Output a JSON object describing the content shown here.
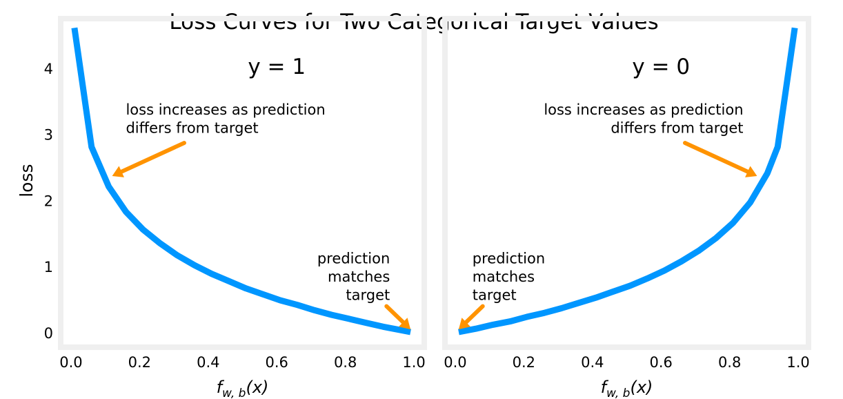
{
  "colors": {
    "curve": "#0096FF",
    "arrow": "#FF9300",
    "frame": "#EFEFEF",
    "background": "#FFFFFF",
    "text": "#000000"
  },
  "figure_title": "Loss Curves for Two Categorical Target Values",
  "chart_data": [
    {
      "type": "line",
      "subtitle": "y = 1",
      "xlabel": "f_{w,b}(x)",
      "xlabel_parts": {
        "base": "f",
        "sub": "w, b",
        "arg": "(x)"
      },
      "ylabel": "loss",
      "xlim": [
        -0.03,
        1.03
      ],
      "ylim": [
        -0.22,
        4.75
      ],
      "xticks": [
        "0.0",
        "0.2",
        "0.4",
        "0.6",
        "0.8",
        "1.0"
      ],
      "yticks": [
        "0",
        "1",
        "2",
        "3",
        "4"
      ],
      "grid": false,
      "x": [
        0.01,
        0.06,
        0.11,
        0.16,
        0.21,
        0.26,
        0.31,
        0.36,
        0.41,
        0.46,
        0.51,
        0.56,
        0.61,
        0.66,
        0.71,
        0.76,
        0.81,
        0.86,
        0.91,
        0.96,
        0.99
      ],
      "y": [
        4.61,
        2.81,
        2.21,
        1.83,
        1.56,
        1.35,
        1.17,
        1.02,
        0.89,
        0.78,
        0.67,
        0.58,
        0.49,
        0.42,
        0.34,
        0.27,
        0.21,
        0.15,
        0.09,
        0.04,
        0.01
      ],
      "annotations": [
        {
          "lines": [
            "loss increases as prediction",
            " differs from target"
          ],
          "align": "left",
          "text_x": 0.16,
          "text_y": 3.3,
          "arrow_from": [
            0.33,
            2.87
          ],
          "arrow_to": [
            0.12,
            2.37
          ]
        },
        {
          "lines": [
            "prediction",
            "matches",
            "target"
          ],
          "align": "right",
          "text_x": 0.93,
          "text_y": 1.05,
          "arrow_from": [
            0.92,
            0.4
          ],
          "arrow_to": [
            0.99,
            0.05
          ]
        }
      ]
    },
    {
      "type": "line",
      "subtitle": "y = 0",
      "xlabel": "f_{w,b}(x)",
      "xlabel_parts": {
        "base": "f",
        "sub": "w, b",
        "arg": "(x)"
      },
      "ylabel": "",
      "xlim": [
        -0.03,
        1.03
      ],
      "ylim": [
        -0.22,
        4.75
      ],
      "xticks": [
        "0.0",
        "0.2",
        "0.4",
        "0.6",
        "0.8",
        "1.0"
      ],
      "yticks": [],
      "grid": false,
      "x": [
        0.01,
        0.06,
        0.11,
        0.16,
        0.21,
        0.26,
        0.31,
        0.36,
        0.41,
        0.46,
        0.51,
        0.56,
        0.61,
        0.66,
        0.71,
        0.76,
        0.81,
        0.86,
        0.91,
        0.94,
        0.99
      ],
      "y": [
        0.01,
        0.06,
        0.12,
        0.17,
        0.24,
        0.3,
        0.37,
        0.45,
        0.53,
        0.62,
        0.71,
        0.82,
        0.94,
        1.08,
        1.24,
        1.43,
        1.66,
        1.97,
        2.41,
        2.81,
        4.61
      ],
      "annotations": [
        {
          "lines": [
            "loss increases as prediction",
            "differs from target"
          ],
          "align": "right",
          "text_x": 0.84,
          "text_y": 3.3,
          "arrow_from": [
            0.67,
            2.87
          ],
          "arrow_to": [
            0.88,
            2.37
          ]
        },
        {
          "lines": [
            "prediction",
            "matches",
            "target"
          ],
          "align": "left",
          "text_x": 0.05,
          "text_y": 1.05,
          "arrow_from": [
            0.08,
            0.4
          ],
          "arrow_to": [
            0.01,
            0.05
          ]
        }
      ]
    }
  ]
}
